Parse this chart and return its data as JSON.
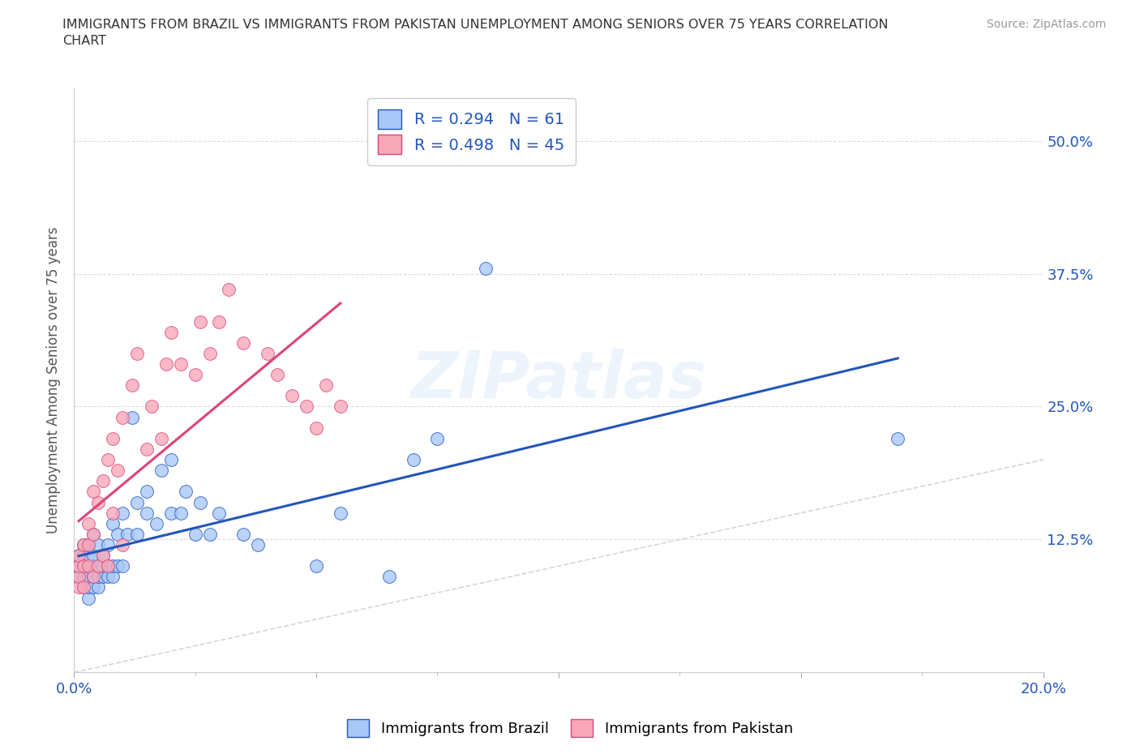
{
  "title": "IMMIGRANTS FROM BRAZIL VS IMMIGRANTS FROM PAKISTAN UNEMPLOYMENT AMONG SENIORS OVER 75 YEARS CORRELATION\nCHART",
  "source": "Source: ZipAtlas.com",
  "ylabel": "Unemployment Among Seniors over 75 years",
  "brazil_R": 0.294,
  "brazil_N": 61,
  "pakistan_R": 0.498,
  "pakistan_N": 45,
  "brazil_color": "#a8c8f8",
  "pakistan_color": "#f8a8b8",
  "brazil_line_color": "#2255bb",
  "pakistan_line_color": "#dd4477",
  "diagonal_color": "#cccccc",
  "watermark_text": "ZIPatlas",
  "xlim": [
    0.0,
    0.2
  ],
  "ylim": [
    0.0,
    0.55
  ],
  "xtick_major": [
    0.0,
    0.05,
    0.1,
    0.15,
    0.2
  ],
  "xtick_labels_show": [
    "0.0%",
    "",
    "",
    "",
    "20.0%"
  ],
  "ytick_vals": [
    0.0,
    0.125,
    0.25,
    0.375,
    0.5
  ],
  "ytick_right_labels": [
    "",
    "12.5%",
    "25.0%",
    "37.5%",
    "50.0%"
  ],
  "brazil_x": [
    0.001,
    0.001,
    0.001,
    0.002,
    0.002,
    0.002,
    0.002,
    0.002,
    0.003,
    0.003,
    0.003,
    0.003,
    0.003,
    0.003,
    0.004,
    0.004,
    0.004,
    0.004,
    0.004,
    0.005,
    0.005,
    0.005,
    0.005,
    0.006,
    0.006,
    0.006,
    0.007,
    0.007,
    0.007,
    0.008,
    0.008,
    0.008,
    0.009,
    0.009,
    0.01,
    0.01,
    0.011,
    0.012,
    0.013,
    0.013,
    0.015,
    0.015,
    0.017,
    0.018,
    0.02,
    0.02,
    0.022,
    0.023,
    0.025,
    0.026,
    0.028,
    0.03,
    0.035,
    0.038,
    0.05,
    0.055,
    0.065,
    0.07,
    0.075,
    0.085,
    0.17
  ],
  "brazil_y": [
    0.09,
    0.1,
    0.11,
    0.08,
    0.09,
    0.1,
    0.11,
    0.12,
    0.07,
    0.08,
    0.09,
    0.1,
    0.11,
    0.12,
    0.08,
    0.09,
    0.1,
    0.11,
    0.13,
    0.08,
    0.09,
    0.1,
    0.12,
    0.09,
    0.1,
    0.11,
    0.09,
    0.1,
    0.12,
    0.09,
    0.1,
    0.14,
    0.1,
    0.13,
    0.1,
    0.15,
    0.13,
    0.24,
    0.13,
    0.16,
    0.15,
    0.17,
    0.14,
    0.19,
    0.15,
    0.2,
    0.15,
    0.17,
    0.13,
    0.16,
    0.13,
    0.15,
    0.13,
    0.12,
    0.1,
    0.15,
    0.09,
    0.2,
    0.22,
    0.38,
    0.22
  ],
  "pakistan_x": [
    0.001,
    0.001,
    0.001,
    0.001,
    0.002,
    0.002,
    0.002,
    0.003,
    0.003,
    0.003,
    0.004,
    0.004,
    0.004,
    0.005,
    0.005,
    0.006,
    0.006,
    0.007,
    0.007,
    0.008,
    0.008,
    0.009,
    0.01,
    0.01,
    0.012,
    0.013,
    0.015,
    0.016,
    0.018,
    0.019,
    0.02,
    0.022,
    0.025,
    0.026,
    0.028,
    0.03,
    0.032,
    0.035,
    0.04,
    0.042,
    0.045,
    0.048,
    0.05,
    0.052,
    0.055
  ],
  "pakistan_y": [
    0.08,
    0.09,
    0.1,
    0.11,
    0.08,
    0.1,
    0.12,
    0.1,
    0.12,
    0.14,
    0.09,
    0.13,
    0.17,
    0.1,
    0.16,
    0.11,
    0.18,
    0.1,
    0.2,
    0.15,
    0.22,
    0.19,
    0.12,
    0.24,
    0.27,
    0.3,
    0.21,
    0.25,
    0.22,
    0.29,
    0.32,
    0.29,
    0.28,
    0.33,
    0.3,
    0.33,
    0.36,
    0.31,
    0.3,
    0.28,
    0.26,
    0.25,
    0.23,
    0.27,
    0.25
  ]
}
